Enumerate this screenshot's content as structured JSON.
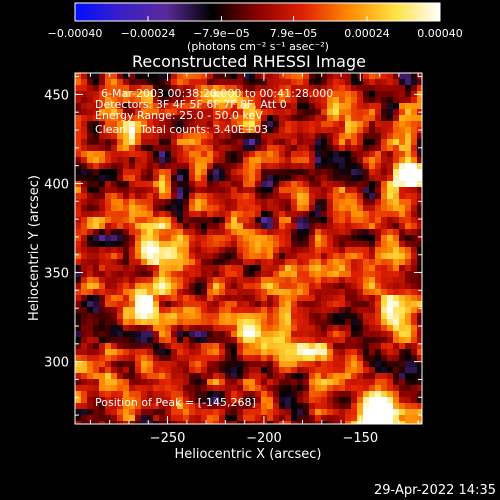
{
  "chart_data": {
    "type": "heatmap",
    "title": "Reconstructed RHESSI Image",
    "xlabel": "Heliocentric X (arcsec)",
    "ylabel": "Heliocentric Y (arcsec)",
    "xlim": [
      -298,
      -118
    ],
    "ylim": [
      265,
      462
    ],
    "x_ticks": [
      -250,
      -200,
      -150
    ],
    "x_tick_labels": [
      "−250",
      "−200",
      "−150"
    ],
    "y_ticks": [
      300,
      350,
      400,
      450
    ],
    "y_tick_labels": [
      "300",
      "350",
      "400",
      "450"
    ],
    "colorbar": {
      "range": [
        -0.0004,
        0.0004
      ],
      "ticks": [
        -0.0004,
        -0.00024,
        -7.9e-05,
        7.9e-05,
        0.00024,
        0.0004
      ],
      "tick_labels": [
        "−0.00040",
        "−0.00024",
        "−7.9e−05",
        "7.9e−05",
        "0.00024",
        "0.00040"
      ],
      "unit_label": "(photons cm⁻² s⁻¹ asec⁻²)",
      "colors": [
        "#0010ff",
        "#3a1fc8",
        "#5a2a9a",
        "#000000",
        "#8a0000",
        "#e02000",
        "#ff8a00",
        "#ffe040",
        "#ffffff"
      ]
    },
    "annotations": [
      "6-Mar-2003 00:38:20.000 to 00:41:28.000",
      "Detectors: 3F 4F 5F 6F 7F 8F, Att 0",
      "Energy Range: 25.0 - 50.0 keV",
      "Clean    Total counts: 3.40E+03"
    ],
    "peak_label": "Position of Peak = [-145,268]",
    "bright_sources": [
      {
        "x": -125,
        "y": 404,
        "value": 0.0004
      },
      {
        "x": -252,
        "y": 362,
        "value": 0.00032
      },
      {
        "x": -264,
        "y": 334,
        "value": 0.00028
      },
      {
        "x": -145,
        "y": 268,
        "value": 0.0004
      },
      {
        "x": -212,
        "y": 322,
        "value": 0.00022
      },
      {
        "x": -135,
        "y": 325,
        "value": 0.00024
      },
      {
        "x": -178,
        "y": 303,
        "value": 0.0002
      },
      {
        "x": -285,
        "y": 296,
        "value": 0.00018
      },
      {
        "x": -212,
        "y": 445,
        "value": 0.00018
      },
      {
        "x": -160,
        "y": 438,
        "value": 0.00016
      },
      {
        "x": -275,
        "y": 430,
        "value": 0.00014
      }
    ]
  },
  "footer_date": "29-Apr-2022 14:35"
}
